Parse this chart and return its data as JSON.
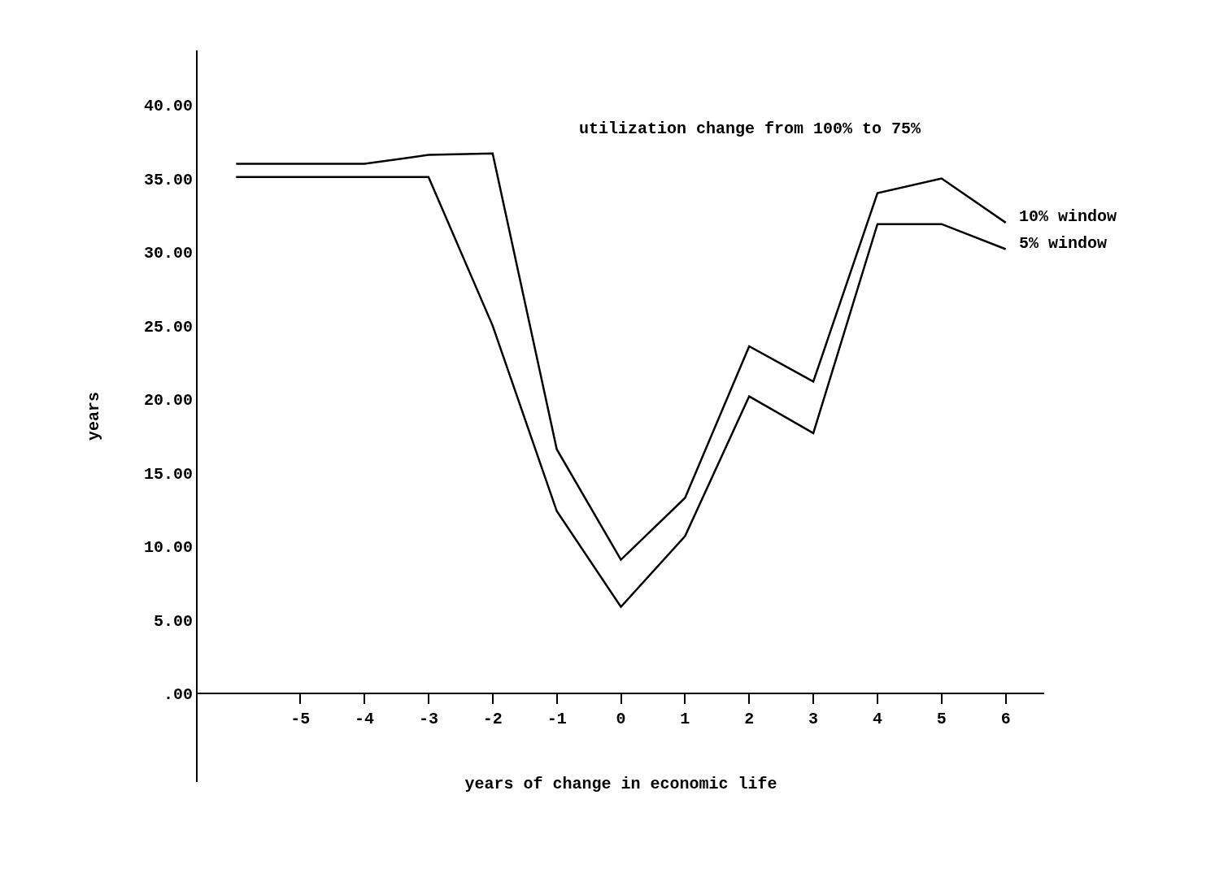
{
  "chart_data": {
    "type": "line",
    "title": "utilization change from 100% to 75%",
    "xlabel": "years of change in economic life",
    "ylabel": "years",
    "x": [
      -6,
      -4,
      -3,
      -2,
      -1,
      0,
      1,
      2,
      3,
      4,
      5,
      6
    ],
    "series": [
      {
        "name": "10% window",
        "color": "#000000",
        "values": [
          36.0,
          36.0,
          36.6,
          36.7,
          16.6,
          9.1,
          13.3,
          23.6,
          21.2,
          34.0,
          35.0,
          32.0
        ]
      },
      {
        "name": "5% window",
        "color": "#000000",
        "values": [
          35.1,
          35.1,
          35.1,
          25.0,
          12.4,
          5.9,
          10.7,
          20.2,
          17.7,
          31.9,
          31.9,
          30.2
        ]
      }
    ],
    "xlim": [
      -6.6,
      6.6
    ],
    "xticks": [
      -5,
      -4,
      -3,
      -2,
      -1,
      0,
      1,
      2,
      3,
      4,
      5,
      6
    ],
    "ylim": [
      -6,
      43.7
    ],
    "yticks": [
      {
        "value": 0,
        "label": ".00"
      },
      {
        "value": 5,
        "label": "5.00"
      },
      {
        "value": 10,
        "label": "10.00"
      },
      {
        "value": 15,
        "label": "15.00"
      },
      {
        "value": 20,
        "label": "20.00"
      },
      {
        "value": 25,
        "label": "25.00"
      },
      {
        "value": 30,
        "label": "30.00"
      },
      {
        "value": 35,
        "label": "35.00"
      },
      {
        "value": 40,
        "label": "40.00"
      }
    ],
    "legend": false
  }
}
